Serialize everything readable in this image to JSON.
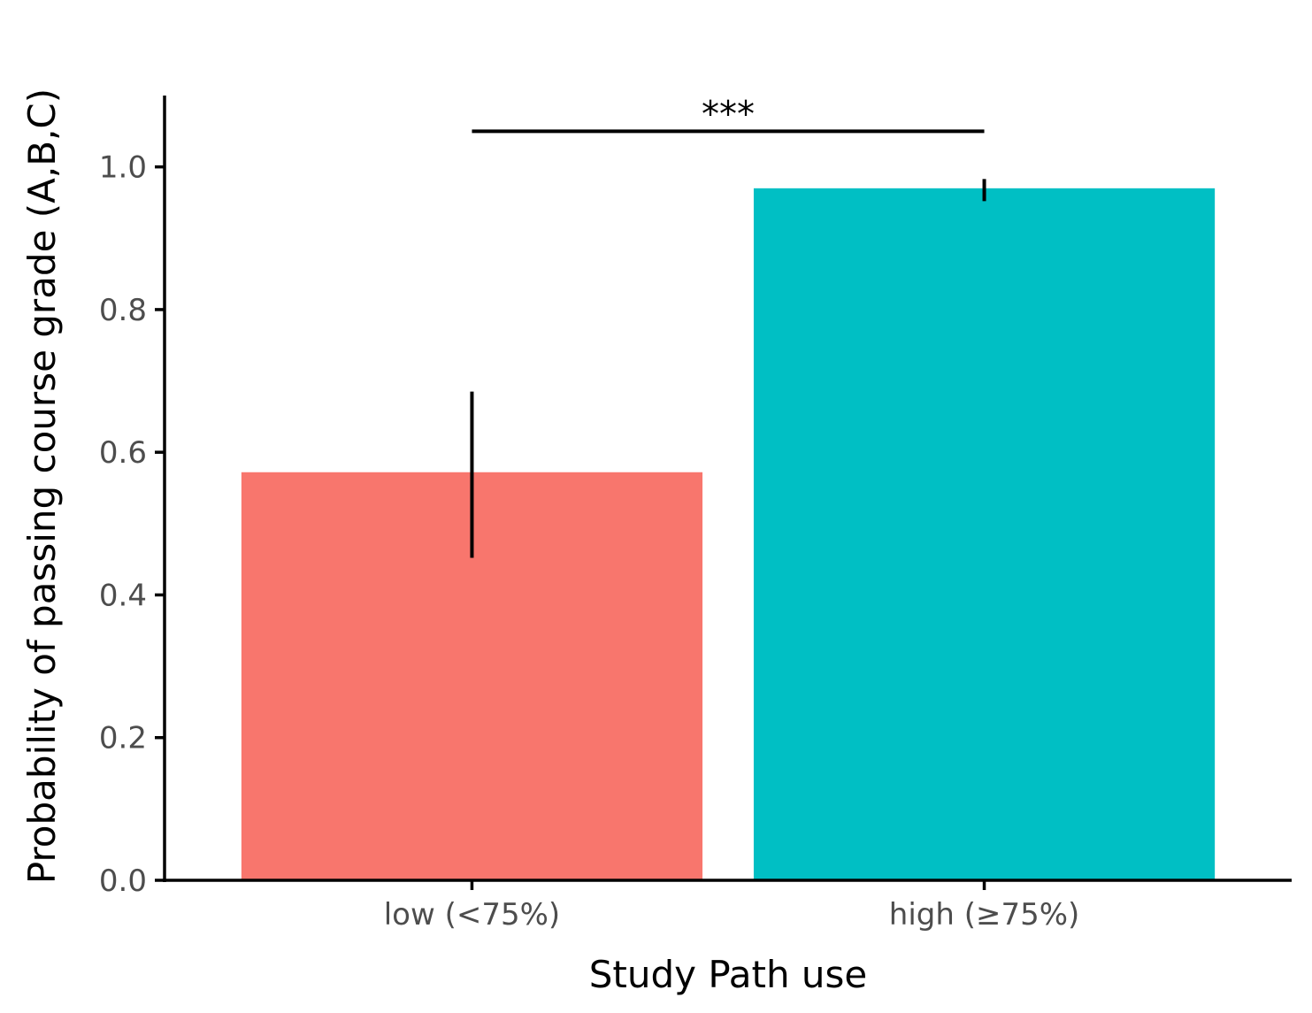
{
  "chart_data": {
    "type": "bar",
    "title": "",
    "xlabel": "Study Path use",
    "ylabel": "Probability of passing course grade (A,B,C)",
    "categories": [
      "low (<75%)",
      "high (≥75%)"
    ],
    "values": [
      0.572,
      0.97
    ],
    "error_bars": [
      {
        "lower": 0.452,
        "upper": 0.685
      },
      {
        "lower": 0.952,
        "upper": 0.983
      }
    ],
    "colors": [
      "#F8766D",
      "#00BFC4"
    ],
    "ylim": [
      0,
      1.1
    ],
    "yticks": [
      0.0,
      0.2,
      0.4,
      0.6,
      0.8,
      1.0
    ],
    "ytick_labels": [
      "0.0",
      "0.2",
      "0.4",
      "0.6",
      "0.8",
      "1.0"
    ],
    "grid": false,
    "legend": "none",
    "significance": {
      "label": "***",
      "y": 1.05,
      "between": [
        "low (<75%)",
        "high (≥75%)"
      ]
    }
  }
}
